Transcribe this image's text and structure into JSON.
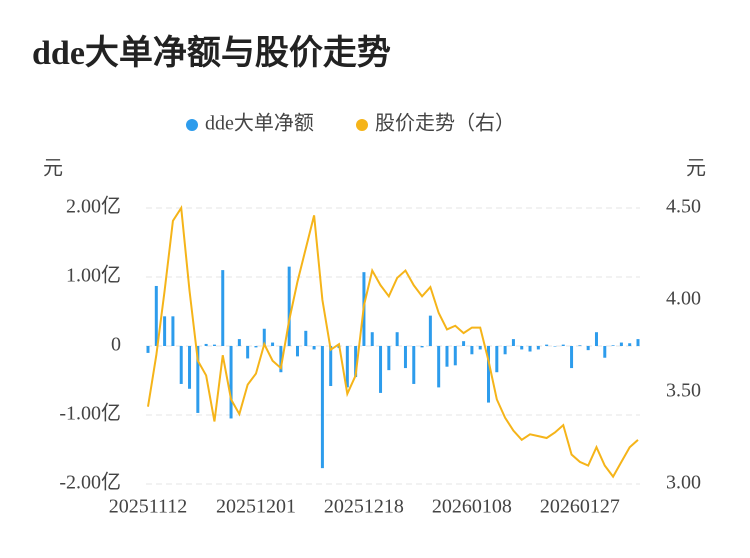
{
  "chart_data": {
    "type": "bar-line",
    "title": "dde大单净额与股价走势",
    "y_label": "元",
    "y2_label": "元",
    "categories": [
      "20251112",
      null,
      null,
      null,
      null,
      null,
      null,
      null,
      null,
      null,
      null,
      null,
      null,
      "20251201",
      null,
      null,
      null,
      null,
      null,
      null,
      null,
      null,
      null,
      null,
      null,
      null,
      "20251218",
      null,
      null,
      null,
      null,
      null,
      null,
      null,
      null,
      null,
      null,
      null,
      null,
      "20260108",
      null,
      null,
      null,
      null,
      null,
      null,
      null,
      null,
      null,
      null,
      null,
      null,
      "20260127",
      null,
      null,
      null,
      null,
      null,
      null,
      null
    ],
    "series": [
      {
        "name": "dde大单净额",
        "color": "#2d9cec",
        "values": [
          -0.1,
          0.87,
          0.43,
          0.43,
          -0.55,
          -0.62,
          -0.97,
          0.03,
          0.02,
          1.1,
          -1.05,
          0.1,
          -0.18,
          -0.02,
          0.25,
          0.05,
          -0.38,
          1.15,
          -0.15,
          0.22,
          -0.05,
          -1.77,
          -0.58,
          -0.03,
          -0.6,
          -0.45,
          1.07,
          0.2,
          -0.68,
          -0.35,
          0.2,
          -0.32,
          -0.55,
          -0.02,
          0.44,
          -0.6,
          -0.3,
          -0.28,
          0.07,
          -0.12,
          -0.05,
          -0.82,
          -0.38,
          -0.12,
          0.1,
          -0.05,
          -0.08,
          -0.05,
          0.02,
          0.0,
          0.02,
          -0.32,
          0.01,
          -0.06,
          0.2,
          -0.17,
          0.01,
          0.05,
          0.04,
          0.1
        ]
      },
      {
        "name": "股价走势（右）",
        "color": "#f5b419",
        "axis": "y2",
        "values": [
          3.42,
          3.7,
          4.05,
          4.43,
          4.5,
          4.05,
          3.67,
          3.59,
          3.34,
          3.7,
          3.46,
          3.38,
          3.54,
          3.6,
          3.76,
          3.67,
          3.63,
          3.89,
          4.1,
          4.28,
          4.46,
          4.0,
          3.73,
          3.76,
          3.49,
          3.59,
          3.97,
          4.16,
          4.08,
          4.02,
          4.12,
          4.16,
          4.08,
          4.02,
          4.07,
          3.93,
          3.84,
          3.86,
          3.82,
          3.85,
          3.85,
          3.67,
          3.46,
          3.36,
          3.29,
          3.24,
          3.27,
          3.26,
          3.25,
          3.28,
          3.32,
          3.16,
          3.12,
          3.1,
          3.2,
          3.1,
          3.04,
          3.12,
          3.2,
          3.24
        ]
      }
    ],
    "ylim": [
      -2,
      2
    ],
    "yticks": [
      {
        "value": 2,
        "label": "2.00亿"
      },
      {
        "value": 1,
        "label": "1.00亿"
      },
      0,
      {
        "value": -1,
        "label": "-1.00亿"
      },
      {
        "value": -2,
        "label": "-2.00亿"
      }
    ],
    "y2lim": [
      3,
      4.5
    ],
    "y2ticks": [
      {
        "value": 4.5,
        "label": "4.50"
      },
      {
        "value": 4,
        "label": "4.00"
      },
      {
        "value": 3.5,
        "label": "3.50"
      },
      {
        "value": 3,
        "label": "3.00"
      }
    ],
    "grid": true
  }
}
